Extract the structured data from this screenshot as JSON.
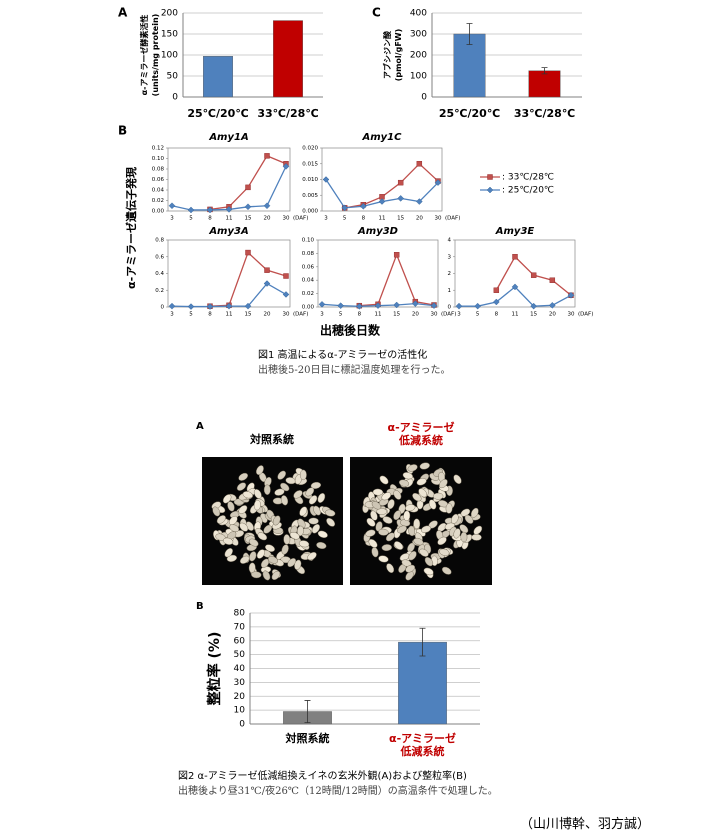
{
  "chart_data": [
    {
      "type": "bar",
      "ylabel": [
        "α-アミラーゼ酵素活性",
        "(units/mg protein)"
      ],
      "categories": [
        "25℃/20℃",
        "33℃/28℃"
      ],
      "values": [
        97,
        182
      ],
      "colors": [
        "#4f81bd",
        "#c00000"
      ],
      "ylim": [
        0,
        200
      ],
      "yticks": [
        0,
        50,
        100,
        150,
        200
      ],
      "grid": true
    },
    {
      "type": "bar",
      "ylabel": [
        "アブシジン酸",
        "(pmol/gFW)"
      ],
      "categories": [
        "25℃/20℃",
        "33℃/28℃"
      ],
      "values": [
        300,
        125
      ],
      "errors": [
        50,
        15
      ],
      "colors": [
        "#4f81bd",
        "#c00000"
      ],
      "ylim": [
        0,
        400
      ],
      "yticks": [
        0,
        100,
        200,
        300,
        400
      ],
      "grid": true
    },
    {
      "type": "line",
      "title": "Amy1A",
      "categories": [
        "3",
        "5",
        "8",
        "11",
        "15",
        "20",
        "30"
      ],
      "x_unit": "(DAF)",
      "ylim": [
        0,
        0.12
      ],
      "yticks": [
        {
          "value": 0,
          "label": "0.00"
        },
        {
          "value": 0.02,
          "label": "0.02"
        },
        {
          "value": 0.04,
          "label": "0.04"
        },
        {
          "value": 0.06,
          "label": "0.06"
        },
        {
          "value": 0.08,
          "label": "0.08"
        },
        {
          "value": 0.1,
          "label": "0.10"
        },
        {
          "value": 0.12,
          "label": "0.12"
        }
      ],
      "series": [
        {
          "color": "#c0504d",
          "marker": "square",
          "values": [
            null,
            null,
            0.003,
            0.008,
            0.045,
            0.105,
            0.09
          ]
        },
        {
          "color": "#4f81bd",
          "marker": "diamond",
          "values": [
            0.01,
            0.002,
            0.002,
            0.003,
            0.008,
            0.01,
            0.085
          ]
        }
      ]
    },
    {
      "type": "line",
      "title": "Amy1C",
      "categories": [
        "3",
        "5",
        "8",
        "11",
        "15",
        "20",
        "30"
      ],
      "x_unit": "(DAF)",
      "ylim": [
        0,
        0.02
      ],
      "yticks": [
        {
          "value": 0,
          "label": "0.000"
        },
        {
          "value": 0.005,
          "label": "0.005"
        },
        {
          "value": 0.01,
          "label": "0.010"
        },
        {
          "value": 0.015,
          "label": "0.015"
        },
        {
          "value": 0.02,
          "label": "0.020"
        }
      ],
      "series": [
        {
          "color": "#c0504d",
          "marker": "square",
          "values": [
            null,
            0.001,
            0.002,
            0.0045,
            0.009,
            0.015,
            0.0095
          ]
        },
        {
          "color": "#4f81bd",
          "marker": "diamond",
          "values": [
            0.01,
            0.001,
            0.0015,
            0.003,
            0.004,
            0.003,
            0.009
          ]
        }
      ]
    },
    {
      "type": "line",
      "title": "Amy3A",
      "categories": [
        "3",
        "5",
        "8",
        "11",
        "15",
        "20",
        "30"
      ],
      "x_unit": "(DAF)",
      "ylim": [
        0,
        0.8
      ],
      "yticks": [
        0,
        0.2,
        0.4,
        0.6,
        0.8
      ],
      "series": [
        {
          "color": "#c0504d",
          "marker": "square",
          "values": [
            null,
            null,
            0.01,
            0.02,
            0.65,
            0.44,
            0.37
          ]
        },
        {
          "color": "#4f81bd",
          "marker": "diamond",
          "values": [
            0.01,
            0.005,
            0.005,
            0.01,
            0.01,
            0.28,
            0.15
          ]
        }
      ]
    },
    {
      "type": "line",
      "title": "Amy3D",
      "categories": [
        "3",
        "5",
        "8",
        "11",
        "15",
        "20",
        "30"
      ],
      "x_unit": "(DAF)",
      "ylim": [
        0,
        0.1
      ],
      "yticks": [
        {
          "value": 0,
          "label": "0.00"
        },
        {
          "value": 0.02,
          "label": "0.02"
        },
        {
          "value": 0.04,
          "label": "0.04"
        },
        {
          "value": 0.06,
          "label": "0.06"
        },
        {
          "value": 0.08,
          "label": "0.08"
        },
        {
          "value": 0.1,
          "label": "0.10"
        }
      ],
      "series": [
        {
          "color": "#c0504d",
          "marker": "square",
          "values": [
            null,
            null,
            0.002,
            0.004,
            0.078,
            0.008,
            0.003
          ]
        },
        {
          "color": "#4f81bd",
          "marker": "diamond",
          "values": [
            0.004,
            0.002,
            0.001,
            0.002,
            0.003,
            0.005,
            0.002
          ]
        }
      ]
    },
    {
      "type": "line",
      "title": "Amy3E",
      "categories": [
        "3",
        "5",
        "8",
        "11",
        "15",
        "20",
        "30"
      ],
      "x_unit": "(DAF)",
      "ylim": [
        0,
        4
      ],
      "yticks": [
        0,
        1,
        2,
        3,
        4
      ],
      "series": [
        {
          "color": "#c0504d",
          "marker": "square",
          "values": [
            null,
            null,
            1.0,
            3.0,
            1.9,
            1.6,
            0.7
          ]
        },
        {
          "color": "#4f81bd",
          "marker": "diamond",
          "values": [
            0.05,
            0.05,
            0.3,
            1.2,
            0.05,
            0.1,
            0.7
          ]
        }
      ]
    },
    {
      "type": "bar",
      "ylabel": [
        "整粒率 (%)"
      ],
      "categories": [
        "対照系統",
        "α-アミラーゼ\n低減系統"
      ],
      "label_colors": [
        "#000000",
        "#c00000"
      ],
      "values": [
        9,
        59
      ],
      "errors": [
        8,
        10
      ],
      "colors": [
        "#808080",
        "#4f81bd"
      ],
      "ylim": [
        0,
        80
      ],
      "yticks": [
        0,
        10,
        20,
        30,
        40,
        50,
        60,
        70,
        80
      ],
      "grid": true
    }
  ],
  "figure1": {
    "panel_labels": [
      "A",
      "B",
      "C"
    ],
    "B": {
      "ylabel": "α-アミラーゼ遺伝子発現",
      "xlabel": "出穂後日数",
      "legend": [
        {
          "name": ": 33℃/28℃",
          "color": "#c0504d",
          "marker": "square"
        },
        {
          "name": ": 25℃/20℃",
          "color": "#4f81bd",
          "marker": "diamond"
        }
      ]
    },
    "caption": {
      "title": "図1 高温によるα-アミラーゼの活性化",
      "note": "出穂後5-20日目に標記温度処理を行った。"
    }
  },
  "figure2": {
    "panel_labels": [
      "A",
      "B"
    ],
    "photo_labels": [
      "対照系統",
      "α-アミラーゼ\n低減系統"
    ],
    "caption": {
      "title": "図2 α-アミラーゼ低減組換えイネの玄米外観(A)および整粒率(B)",
      "note": "出穂後より昼31℃/夜26℃（12時間/12時間）の高温条件で処理した。"
    }
  },
  "credit": "（山川博幹、羽方誠）"
}
